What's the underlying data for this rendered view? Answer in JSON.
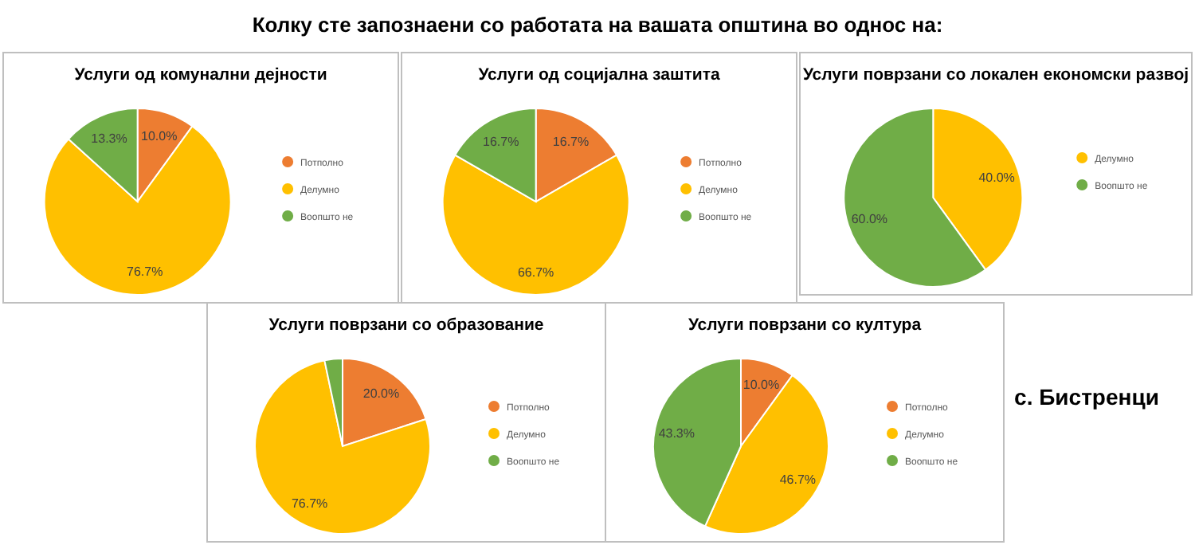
{
  "chart_data": [
    {
      "type": "pie",
      "title": "Услуги од комунални дејности",
      "categories": [
        "Потполно",
        "Делумно",
        "Воопшто не"
      ],
      "values": [
        10.0,
        76.7,
        13.3
      ],
      "colors": [
        "#ed7d31",
        "#ffc000",
        "#70ad47"
      ],
      "value_labels": [
        "10.0%",
        "76.7%",
        "13.3%"
      ],
      "legend": "right"
    },
    {
      "type": "pie",
      "title": "Услуги од социјална заштита",
      "categories": [
        "Потполно",
        "Делумно",
        "Воопшто не"
      ],
      "values": [
        16.7,
        66.7,
        16.7
      ],
      "colors": [
        "#ed7d31",
        "#ffc000",
        "#70ad47"
      ],
      "value_labels": [
        "16.7%",
        "66.7%",
        "16.7%"
      ],
      "legend": "right"
    },
    {
      "type": "pie",
      "title": "Услуги поврзани со локален економски развој",
      "categories": [
        "Делумно",
        "Воопшто не"
      ],
      "values": [
        40.0,
        60.0
      ],
      "colors": [
        "#ffc000",
        "#70ad47"
      ],
      "value_labels": [
        "40.0%",
        "60.0%"
      ],
      "legend": "right"
    },
    {
      "type": "pie",
      "title": "Услуги поврзани со образование",
      "categories": [
        "Потполно",
        "Делумно",
        "Воопшто не"
      ],
      "values": [
        20.0,
        76.7,
        3.3
      ],
      "colors": [
        "#ed7d31",
        "#ffc000",
        "#70ad47"
      ],
      "value_labels": [
        "20.0%",
        "76.7%",
        null
      ],
      "legend": "right"
    },
    {
      "type": "pie",
      "title": "Услуги поврзани со култура",
      "categories": [
        "Потполно",
        "Делумно",
        "Воопшто не"
      ],
      "values": [
        10.0,
        46.7,
        43.3
      ],
      "colors": [
        "#ed7d31",
        "#ffc000",
        "#70ad47"
      ],
      "value_labels": [
        "10.0%",
        "46.7%",
        "43.3%"
      ],
      "legend": "right"
    },
    {
      "type": "other",
      "title": "Колку сте запознаени со работата на вашата општина во однос на:",
      "annotations": [
        "с. Бистренци"
      ]
    }
  ]
}
